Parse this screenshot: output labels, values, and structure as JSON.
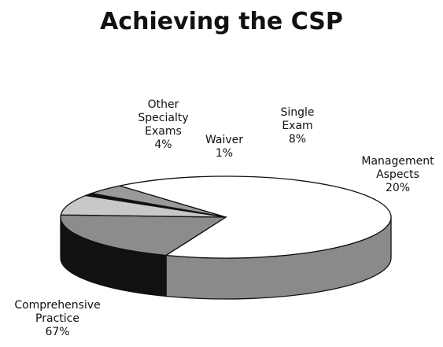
{
  "chart_data": {
    "type": "pie",
    "title": "Achieving the CSP",
    "slices": [
      {
        "label": [
          "Comprehensive",
          "Practice"
        ],
        "value": 67,
        "display": "67%",
        "color": "#ffffff"
      },
      {
        "label": [
          "Management",
          "Aspects"
        ],
        "value": 20,
        "display": "20%",
        "color": "#8c8c8c"
      },
      {
        "label": [
          "Single",
          "Exam"
        ],
        "value": 8,
        "display": "8%",
        "color": "#c8c8c8"
      },
      {
        "label": [
          "Waiver"
        ],
        "value": 1,
        "display": "1%",
        "color": "#111111"
      },
      {
        "label": [
          "Other",
          "Specialty",
          "Exams"
        ],
        "value": 4,
        "display": "4%",
        "color": "#9a9a9a"
      }
    ],
    "style": "3d"
  }
}
